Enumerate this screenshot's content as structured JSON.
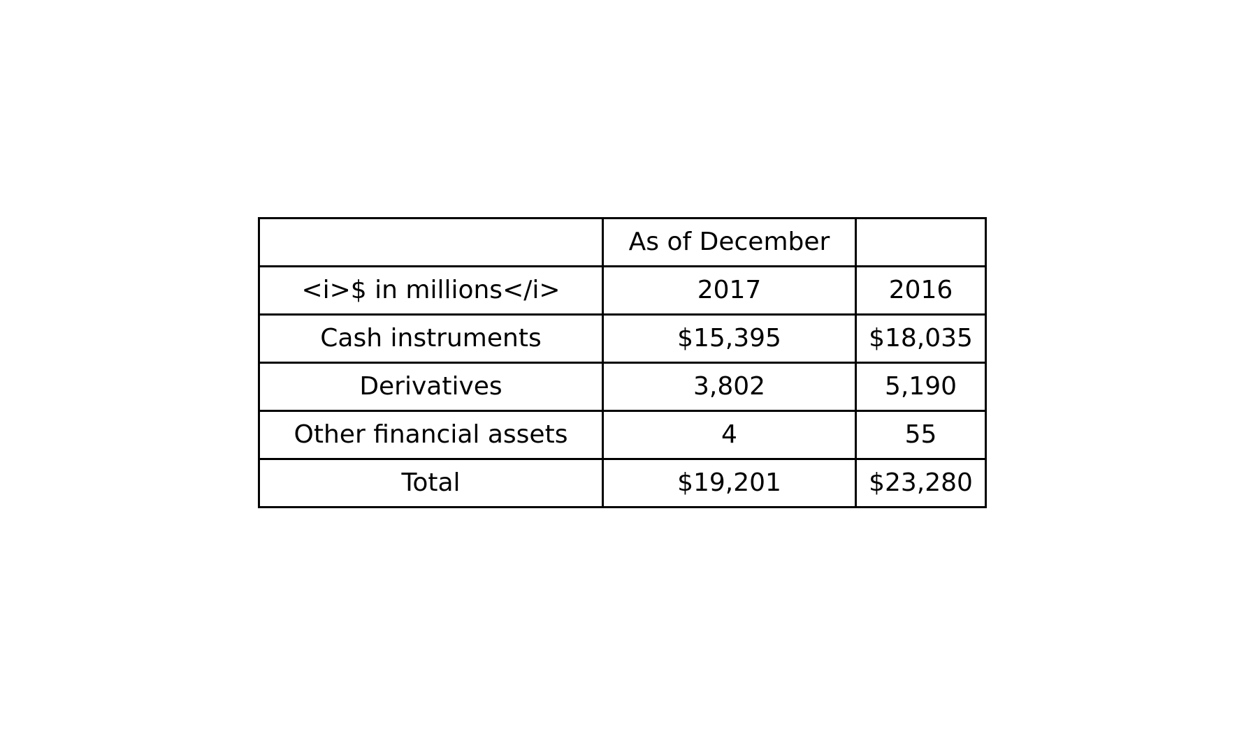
{
  "table": {
    "header": {
      "span_label": "As of December",
      "unit_label": "<i>$ in millions</i>",
      "years": [
        "2017",
        "2016"
      ]
    },
    "rows": [
      {
        "label": "Cash instruments",
        "values": [
          "$15,395",
          "$18,035"
        ]
      },
      {
        "label": "Derivatives",
        "values": [
          "3,802",
          "5,190"
        ]
      },
      {
        "label": "Other financial assets",
        "values": [
          "4",
          "55"
        ]
      },
      {
        "label": "Total",
        "values": [
          "$19,201",
          "$23,280"
        ]
      }
    ]
  }
}
